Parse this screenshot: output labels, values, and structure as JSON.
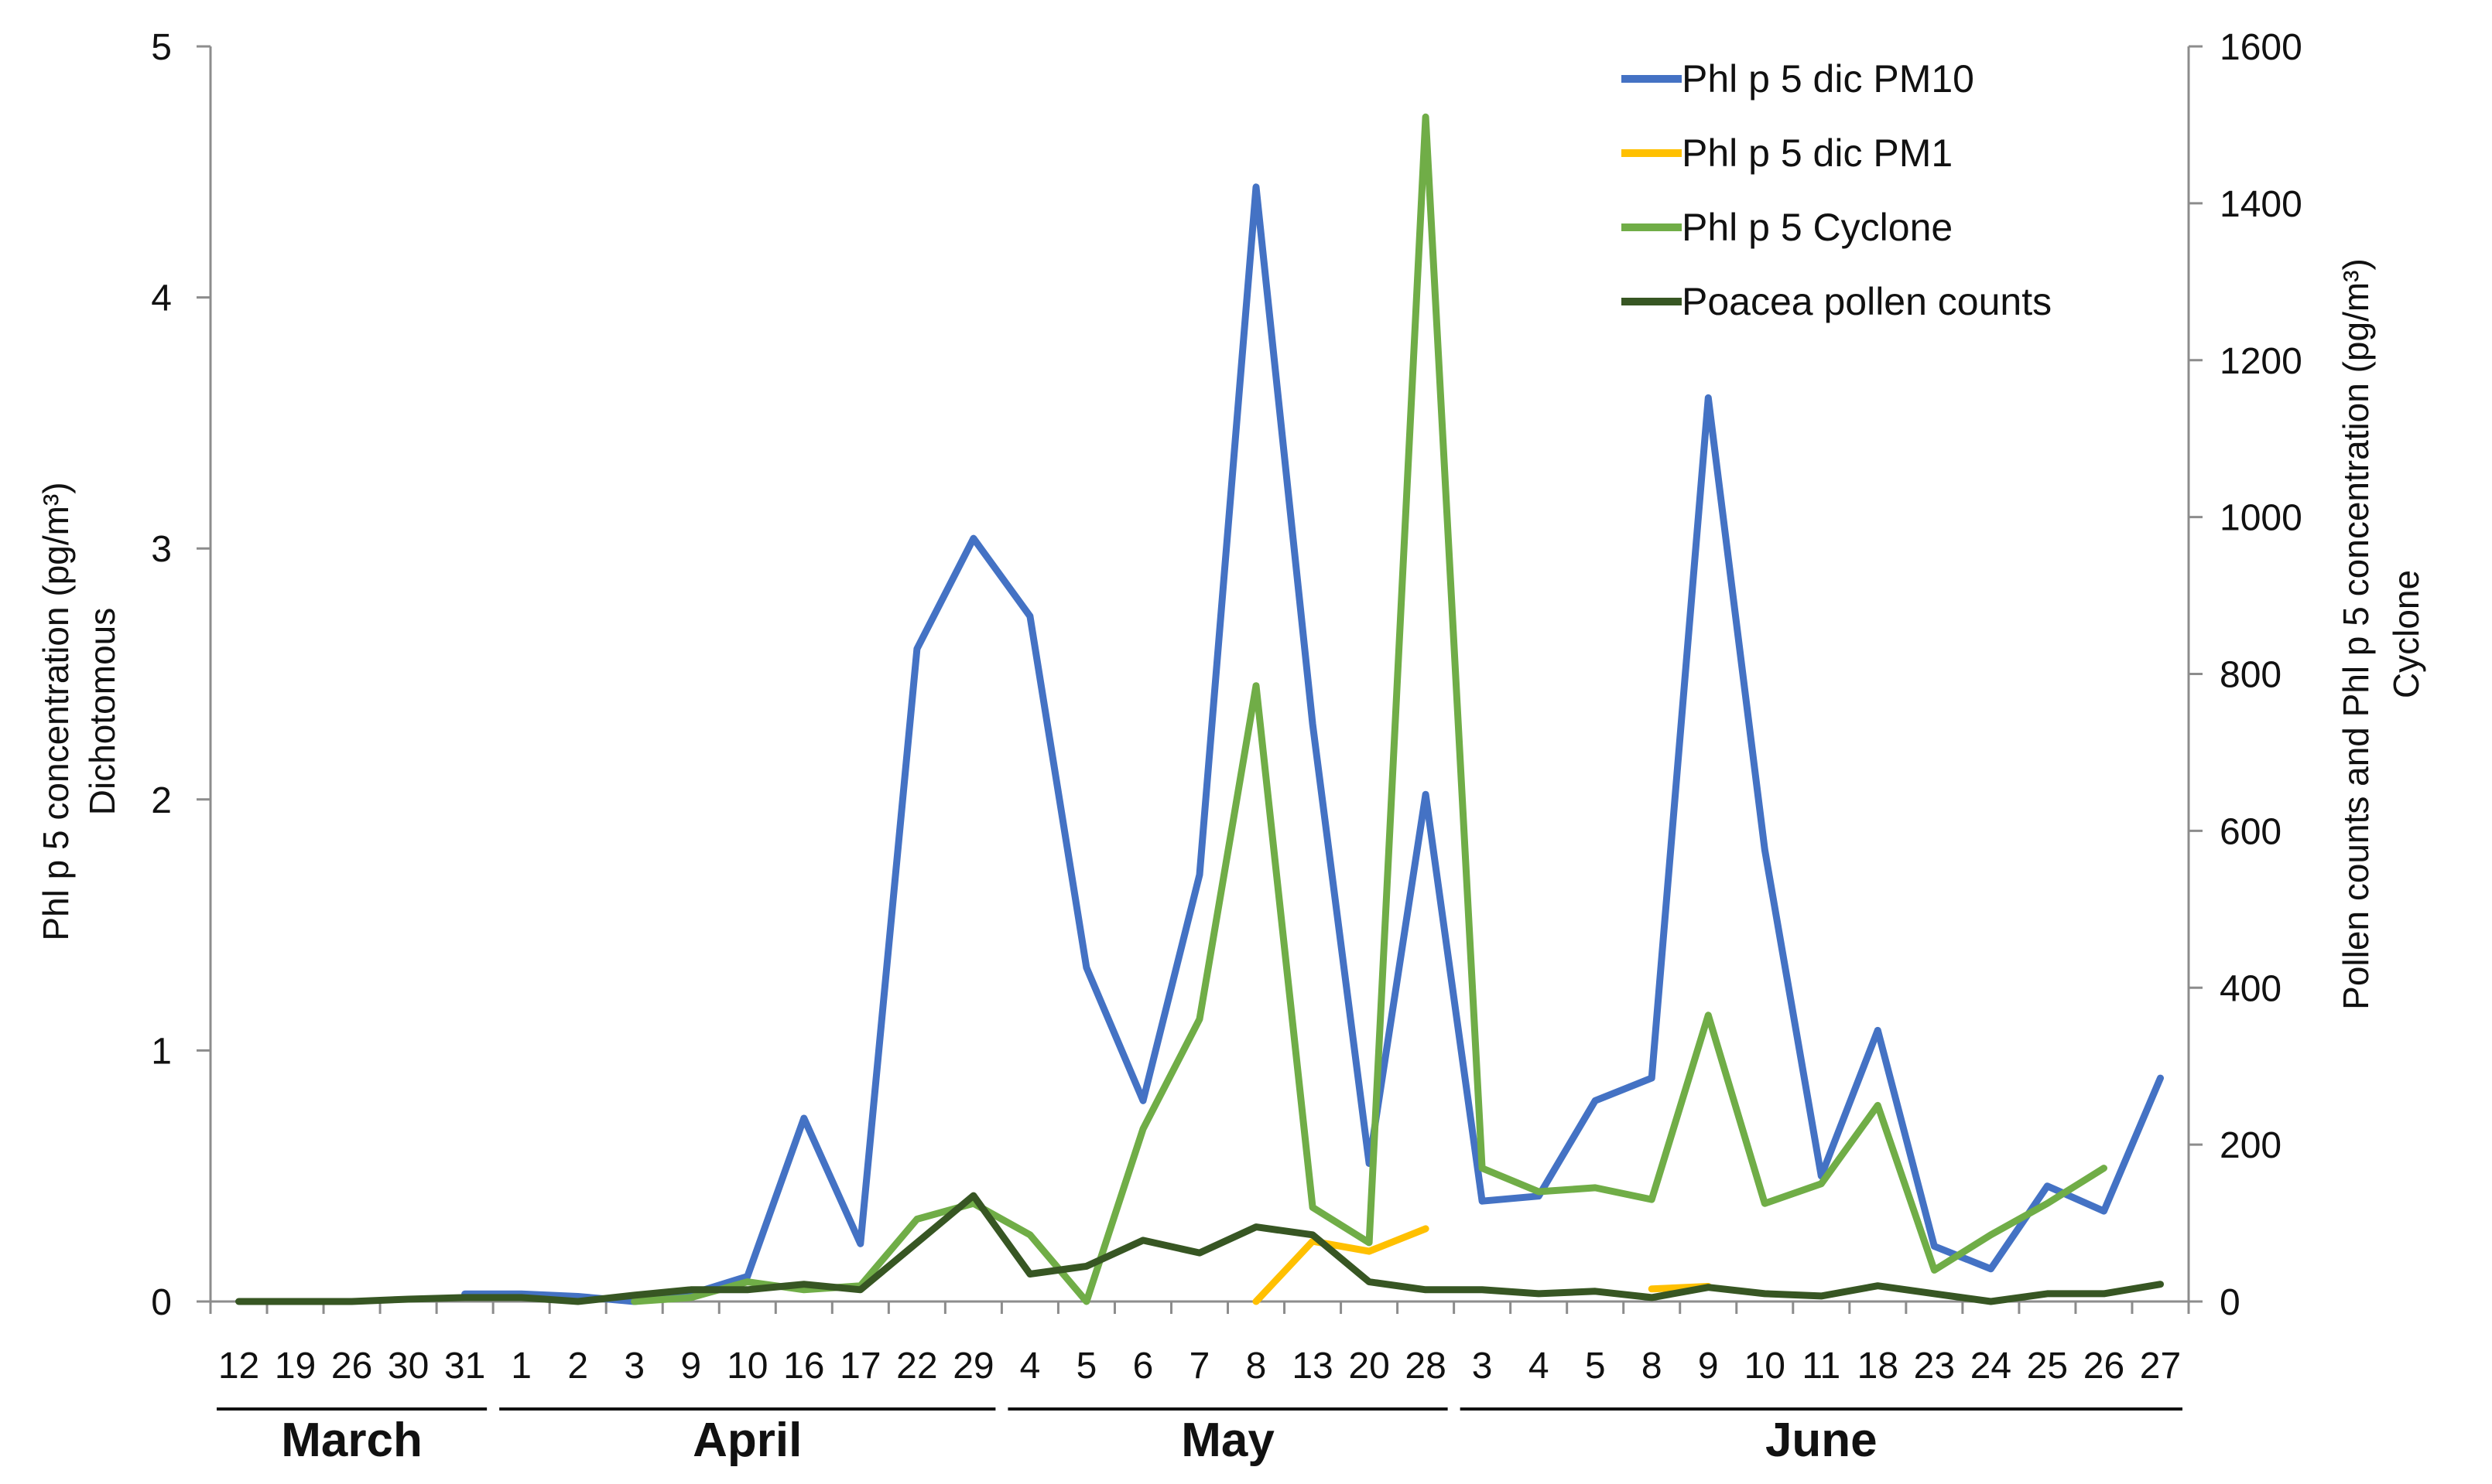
{
  "chart_data": {
    "type": "line",
    "categories": [
      "12",
      "19",
      "26",
      "30",
      "31",
      "1",
      "2",
      "3",
      "9",
      "10",
      "16",
      "17",
      "22",
      "29",
      "4",
      "5",
      "6",
      "7",
      "8",
      "13",
      "20",
      "28",
      "3",
      "4",
      "5",
      "8",
      "9",
      "10",
      "11",
      "18",
      "23",
      "24",
      "25",
      "26",
      "27"
    ],
    "months": [
      {
        "label": "March",
        "from": 0,
        "to": 4
      },
      {
        "label": "April",
        "from": 5,
        "to": 13
      },
      {
        "label": "May",
        "from": 14,
        "to": 21
      },
      {
        "label": "June",
        "from": 22,
        "to": 34
      }
    ],
    "ylabel_left_line1": "Phl p 5 concentration  (pg/m³)",
    "ylabel_left_line2": "Dichotomous",
    "ylabel_right_line1": "Pollen counts and Phl p 5 concentration (pg/m³)",
    "ylabel_right_line2": "Cyclone",
    "ylim_left": [
      0,
      5
    ],
    "yticks_left": [
      0,
      1,
      2,
      3,
      4,
      5
    ],
    "ylim_right": [
      0,
      1600
    ],
    "yticks_right": [
      0,
      200,
      400,
      600,
      800,
      1000,
      1200,
      1400,
      1600
    ],
    "grid": false,
    "legend_position": "top-right",
    "series": [
      {
        "name": "Phl p 5 dic PM10",
        "color": "#4472C4",
        "axis": "left",
        "values": [
          null,
          null,
          null,
          null,
          0.03,
          0.03,
          0.02,
          0.0,
          0.03,
          0.1,
          0.73,
          0.23,
          2.6,
          3.04,
          2.73,
          1.33,
          0.8,
          1.7,
          4.44,
          2.3,
          0.55,
          2.02,
          0.4,
          0.42,
          0.8,
          0.89,
          3.6,
          1.8,
          0.5,
          1.08,
          0.22,
          0.13,
          0.46,
          0.36,
          0.89
        ]
      },
      {
        "name": "Phl p 5 dic PM1",
        "color": "#FFC000",
        "axis": "left",
        "values": [
          null,
          null,
          null,
          null,
          null,
          null,
          null,
          null,
          null,
          null,
          null,
          null,
          null,
          null,
          null,
          null,
          null,
          null,
          0.0,
          0.24,
          0.2,
          0.29,
          null,
          null,
          null,
          0.05,
          0.06,
          null,
          null,
          null,
          null,
          null,
          null,
          null,
          null
        ]
      },
      {
        "name": "Phl p 5 Cyclone",
        "color": "#70AD47",
        "axis": "right",
        "values": [
          null,
          null,
          null,
          null,
          null,
          null,
          null,
          0.0,
          5,
          25,
          15,
          20,
          105,
          125,
          85,
          0,
          220,
          360,
          785,
          120,
          75,
          1510,
          170,
          140,
          145,
          130,
          365,
          125,
          150,
          250,
          40,
          85,
          125,
          170,
          null
        ]
      },
      {
        "name": "Poacea pollen counts",
        "color": "#375623",
        "axis": "right",
        "values": [
          0,
          0,
          0,
          3,
          5,
          5,
          0,
          8,
          15,
          15,
          22,
          15,
          75,
          135,
          35,
          45,
          78,
          62,
          95,
          85,
          25,
          15,
          15,
          10,
          13,
          5,
          18,
          10,
          7,
          20,
          10,
          0,
          10,
          10,
          22
        ]
      }
    ]
  }
}
